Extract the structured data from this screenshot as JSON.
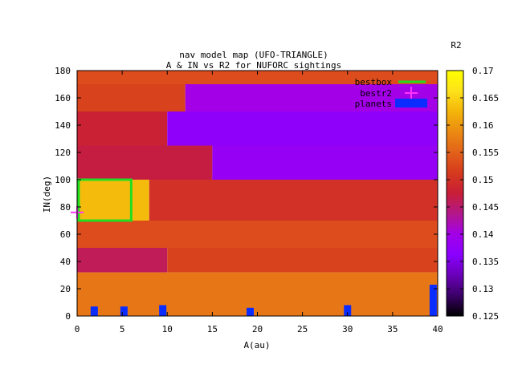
{
  "chart_data": {
    "type": "heatmap",
    "title_lines": [
      "nav model map (UFO-TRIANGLE)",
      "A & IN vs R2 for NUFORC sightings"
    ],
    "xlabel": "A(au)",
    "ylabel": "IN(deg)",
    "xlim": [
      0,
      40
    ],
    "ylim": [
      0,
      180
    ],
    "xticks": [
      0,
      5,
      10,
      15,
      20,
      25,
      30,
      35,
      40
    ],
    "yticks": [
      0,
      20,
      40,
      60,
      80,
      100,
      120,
      140,
      160,
      180
    ],
    "colorbar": {
      "label": "R2",
      "range": [
        0.125,
        0.17
      ],
      "ticks": [
        "0.125",
        "0.13",
        "0.135",
        "0.14",
        "0.145",
        "0.15",
        "0.155",
        "0.16",
        "0.165",
        "0.17"
      ],
      "palette": [
        "#000000",
        "#3a0068",
        "#6a00b8",
        "#8a00ff",
        "#a300e8",
        "#b3188a",
        "#c81e37",
        "#d63a1d",
        "#e2611a",
        "#eb8a12",
        "#f3b50a",
        "#fde21a",
        "#ffff00"
      ]
    },
    "grid": false,
    "legend_placement": "top-right",
    "legend": [
      {
        "label": "bestbox",
        "color": "#22dd22"
      },
      {
        "label": "bestr2",
        "color": "#ff33ff"
      },
      {
        "label": "planets",
        "color": "#0a2cff"
      }
    ],
    "bestbox": {
      "x": [
        0,
        6
      ],
      "y": [
        70,
        100
      ]
    },
    "bestr2": {
      "x": 0,
      "y": 76
    },
    "planets": [
      {
        "a": 1.9,
        "in": 0,
        "in_top": 7
      },
      {
        "a": 5.2,
        "in": 0,
        "in_top": 7
      },
      {
        "a": 9.5,
        "in": 0,
        "in_top": 8
      },
      {
        "a": 19.2,
        "in": 0,
        "in_top": 6
      },
      {
        "a": 30.0,
        "in": 0,
        "in_top": 8
      },
      {
        "a": 39.5,
        "in": 0,
        "in_top": 23
      }
    ],
    "heatmap_regions": [
      {
        "y": [
          170,
          180
        ],
        "x": [
          0,
          40
        ],
        "r2": 0.153
      },
      {
        "y": [
          150,
          170
        ],
        "x": [
          0,
          12
        ],
        "r2": 0.152
      },
      {
        "y": [
          150,
          170
        ],
        "x": [
          12,
          40
        ],
        "r2": 0.14
      },
      {
        "y": [
          125,
          150
        ],
        "x": [
          0,
          10
        ],
        "r2": 0.148
      },
      {
        "y": [
          125,
          150
        ],
        "x": [
          10,
          40
        ],
        "r2": 0.137
      },
      {
        "y": [
          100,
          125
        ],
        "x": [
          0,
          15
        ],
        "r2": 0.147
      },
      {
        "y": [
          100,
          125
        ],
        "x": [
          15,
          40
        ],
        "r2": 0.138
      },
      {
        "y": [
          70,
          100
        ],
        "x": [
          0,
          8
        ],
        "r2": 0.163
      },
      {
        "y": [
          70,
          100
        ],
        "x": [
          8,
          40
        ],
        "r2": 0.15
      },
      {
        "y": [
          50,
          70
        ],
        "x": [
          0,
          40
        ],
        "r2": 0.153
      },
      {
        "y": [
          32,
          50
        ],
        "x": [
          0,
          10
        ],
        "r2": 0.146
      },
      {
        "y": [
          32,
          50
        ],
        "x": [
          10,
          40
        ],
        "r2": 0.152
      },
      {
        "y": [
          0,
          32
        ],
        "x": [
          0,
          40
        ],
        "r2": 0.157
      }
    ]
  }
}
